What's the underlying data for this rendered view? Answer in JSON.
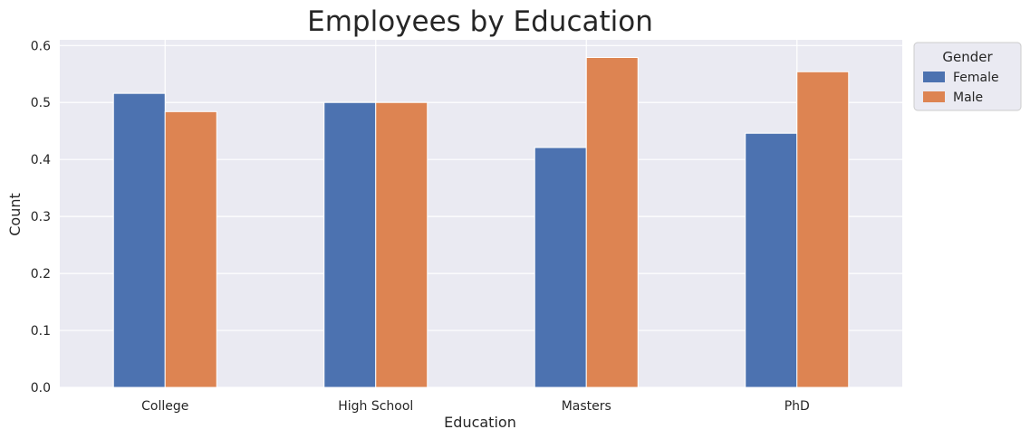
{
  "chart_data": {
    "type": "bar",
    "title": "Employees by Education",
    "xlabel": "Education",
    "ylabel": "Count",
    "categories": [
      "College",
      "High School",
      "Masters",
      "PhD"
    ],
    "series": [
      {
        "name": "Female",
        "values": [
          0.516,
          0.5,
          0.421,
          0.446
        ],
        "color": "#4c72b0"
      },
      {
        "name": "Male",
        "values": [
          0.484,
          0.5,
          0.579,
          0.554
        ],
        "color": "#dd8452"
      }
    ],
    "ylim": [
      0,
      0.61
    ],
    "yticks": [
      "0.0",
      "0.1",
      "0.2",
      "0.3",
      "0.4",
      "0.5",
      "0.6"
    ],
    "grid": true,
    "legend": {
      "title": "Gender",
      "placement": "outside top-right"
    },
    "background": "#eaeaf2",
    "grid_color": "#ffffff"
  }
}
